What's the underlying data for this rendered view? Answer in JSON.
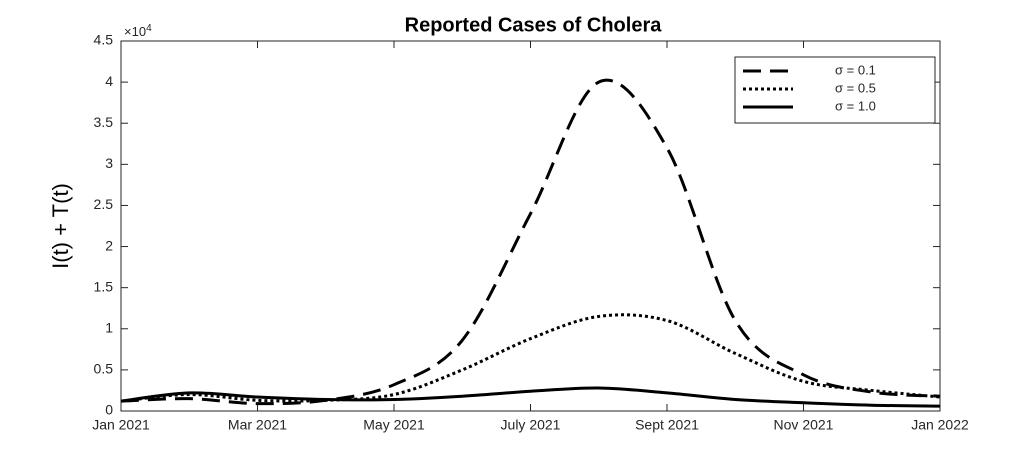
{
  "chart_data": {
    "type": "line",
    "title": "Reported Cases of Cholera",
    "y_label": "I(t) + T(t)",
    "y_multiplier": "×10",
    "y_multiplier_exponent": "4",
    "x": [
      "2021-01",
      "2021-02",
      "2021-03",
      "2021-04",
      "2021-05",
      "2021-06",
      "2021-07",
      "2021-08",
      "2021-09",
      "2021-10",
      "2021-11",
      "2021-12",
      "2022-01"
    ],
    "xlim": [
      "2021-01",
      "2022-01"
    ],
    "xticks": [
      {
        "value": "2021-01",
        "label": "Jan 2021"
      },
      {
        "value": "2021-03",
        "label": "Mar 2021"
      },
      {
        "value": "2021-05",
        "label": "May 2021"
      },
      {
        "value": "2021-07",
        "label": "July 2021"
      },
      {
        "value": "2021-09",
        "label": "Sept 2021"
      },
      {
        "value": "2021-11",
        "label": "Nov 2021"
      },
      {
        "value": "2022-01",
        "label": "Jan 2022"
      }
    ],
    "ylim": [
      0,
      4.5
    ],
    "yticks": [
      0,
      0.5,
      1,
      1.5,
      2,
      2.5,
      3,
      3.5,
      4,
      4.5
    ],
    "legend": "top-right",
    "series": [
      {
        "name": "σ = 0.1",
        "color": "#000000",
        "line_style": "dashed",
        "values": [
          0.12,
          0.15,
          0.09,
          0.13,
          0.32,
          0.86,
          2.4,
          4.0,
          3.2,
          1.1,
          0.44,
          0.23,
          0.18
        ]
      },
      {
        "name": "σ = 0.5",
        "color": "#000000",
        "line_style": "dotted",
        "values": [
          0.12,
          0.2,
          0.13,
          0.13,
          0.2,
          0.5,
          0.88,
          1.15,
          1.1,
          0.7,
          0.36,
          0.25,
          0.17
        ]
      },
      {
        "name": "σ = 1.0",
        "color": "#000000",
        "line_style": "solid",
        "values": [
          0.12,
          0.22,
          0.17,
          0.14,
          0.14,
          0.18,
          0.24,
          0.28,
          0.22,
          0.14,
          0.1,
          0.07,
          0.06
        ]
      }
    ]
  }
}
